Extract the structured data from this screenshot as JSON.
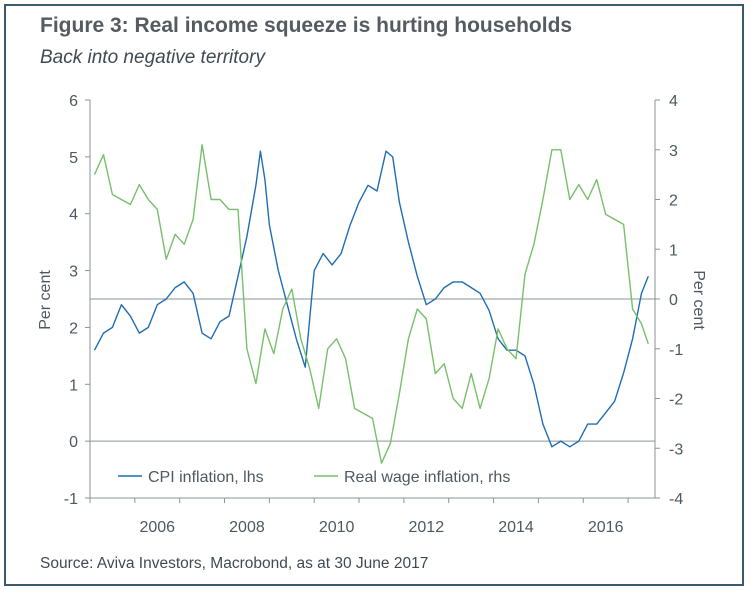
{
  "title": "Figure 3: Real income squeeze is hurting households",
  "subtitle": "Back into negative territory",
  "source": "Source: Aviva Investors, Macrobond, as at 30 June 2017",
  "colors": {
    "cpi": "#1f6db3",
    "wage": "#77c06a",
    "axis": "#8a9399",
    "frame": "#3c5a6e"
  },
  "chart_data": {
    "type": "line",
    "ylabel_left": "Per cent",
    "ylabel_right": "Per cent",
    "ylim_left": [
      -1,
      6
    ],
    "ylim_right": [
      -4,
      4
    ],
    "xlim": [
      2005.0,
      2017.6
    ],
    "yticks_left": [
      6,
      5,
      4,
      3,
      2,
      1,
      0,
      -1
    ],
    "yticks_right": [
      4,
      3,
      2,
      1,
      0,
      -1,
      -2,
      -3,
      -4
    ],
    "xticks": [
      "2006",
      "2008",
      "2010",
      "2012",
      "2014",
      "2016"
    ],
    "legend": "bottom-inside",
    "series": [
      {
        "name": "CPI inflation, lhs",
        "axis": "left",
        "x": [
          2005.1,
          2005.3,
          2005.5,
          2005.7,
          2005.9,
          2006.1,
          2006.3,
          2006.5,
          2006.7,
          2006.9,
          2007.1,
          2007.3,
          2007.5,
          2007.7,
          2007.9,
          2008.1,
          2008.3,
          2008.5,
          2008.7,
          2008.8,
          2008.9,
          2009.0,
          2009.2,
          2009.4,
          2009.6,
          2009.8,
          2010.0,
          2010.2,
          2010.4,
          2010.6,
          2010.8,
          2011.0,
          2011.2,
          2011.4,
          2011.6,
          2011.75,
          2011.9,
          2012.1,
          2012.3,
          2012.5,
          2012.7,
          2012.9,
          2013.1,
          2013.3,
          2013.5,
          2013.7,
          2013.9,
          2014.1,
          2014.3,
          2014.5,
          2014.7,
          2014.9,
          2015.1,
          2015.3,
          2015.5,
          2015.7,
          2015.9,
          2016.1,
          2016.3,
          2016.5,
          2016.7,
          2016.9,
          2017.1,
          2017.3,
          2017.45
        ],
        "values": [
          1.6,
          1.9,
          2.0,
          2.4,
          2.2,
          1.9,
          2.0,
          2.4,
          2.5,
          2.7,
          2.8,
          2.6,
          1.9,
          1.8,
          2.1,
          2.2,
          2.9,
          3.6,
          4.5,
          5.1,
          4.6,
          3.8,
          3.0,
          2.4,
          1.8,
          1.3,
          3.0,
          3.3,
          3.1,
          3.3,
          3.8,
          4.2,
          4.5,
          4.4,
          5.1,
          5.0,
          4.2,
          3.5,
          2.9,
          2.4,
          2.5,
          2.7,
          2.8,
          2.8,
          2.7,
          2.6,
          2.3,
          1.8,
          1.6,
          1.6,
          1.5,
          1.0,
          0.3,
          -0.1,
          0.0,
          -0.1,
          0.0,
          0.3,
          0.3,
          0.5,
          0.7,
          1.2,
          1.8,
          2.6,
          2.9
        ]
      },
      {
        "name": "Real wage inflation, rhs",
        "axis": "right",
        "x": [
          2005.1,
          2005.3,
          2005.5,
          2005.7,
          2005.9,
          2006.1,
          2006.3,
          2006.5,
          2006.7,
          2006.9,
          2007.1,
          2007.3,
          2007.5,
          2007.7,
          2007.9,
          2008.1,
          2008.3,
          2008.5,
          2008.7,
          2008.9,
          2009.1,
          2009.3,
          2009.5,
          2009.7,
          2009.9,
          2010.1,
          2010.3,
          2010.5,
          2010.7,
          2010.9,
          2011.1,
          2011.3,
          2011.5,
          2011.7,
          2011.9,
          2012.1,
          2012.3,
          2012.5,
          2012.7,
          2012.9,
          2013.1,
          2013.3,
          2013.5,
          2013.7,
          2013.9,
          2014.1,
          2014.3,
          2014.5,
          2014.7,
          2014.9,
          2015.1,
          2015.3,
          2015.5,
          2015.7,
          2015.9,
          2016.1,
          2016.3,
          2016.5,
          2016.7,
          2016.9,
          2017.1,
          2017.3,
          2017.45
        ],
        "values": [
          2.5,
          2.9,
          2.1,
          2.0,
          1.9,
          2.3,
          2.0,
          1.8,
          0.8,
          1.3,
          1.1,
          1.6,
          3.1,
          2.0,
          2.0,
          1.8,
          1.8,
          -1.0,
          -1.7,
          -0.6,
          -1.1,
          -0.2,
          0.2,
          -0.8,
          -1.4,
          -2.2,
          -1.0,
          -0.8,
          -1.2,
          -2.2,
          -2.3,
          -2.4,
          -3.3,
          -2.9,
          -1.9,
          -0.8,
          -0.2,
          -0.4,
          -1.5,
          -1.3,
          -2.0,
          -2.2,
          -1.5,
          -2.2,
          -1.6,
          -0.6,
          -1.0,
          -1.2,
          0.5,
          1.1,
          2.0,
          3.0,
          3.0,
          2.0,
          2.3,
          2.0,
          2.4,
          1.7,
          1.6,
          1.5,
          -0.2,
          -0.5,
          -0.9
        ]
      }
    ]
  }
}
